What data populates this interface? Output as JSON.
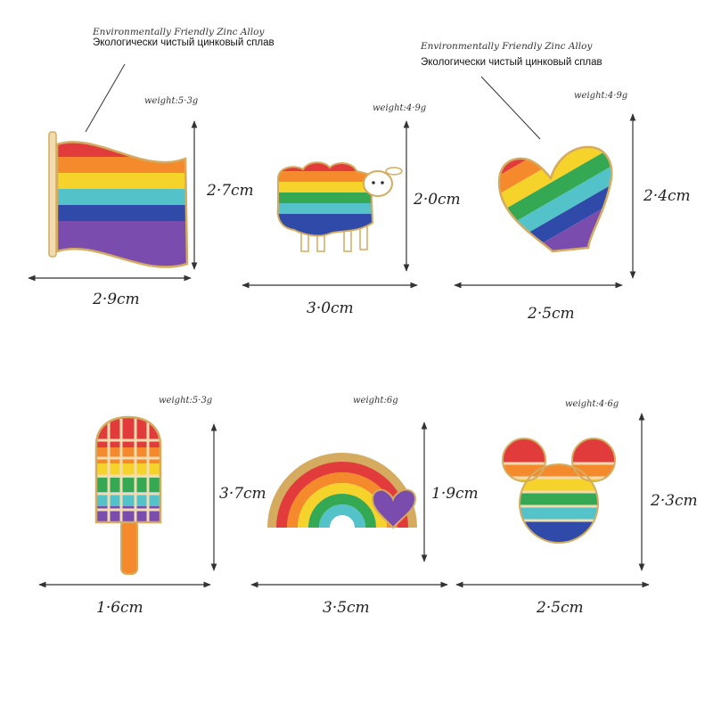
{
  "material_note": {
    "en": "Environmentally Friendly Zinc Alloy",
    "ru": "Экологически чистый цинковый сплав"
  },
  "colors": {
    "red": "#e23b3b",
    "orange": "#f58a2c",
    "yellow": "#f5d32a",
    "green": "#34a853",
    "cyan": "#53c3c9",
    "blue": "#2f4aa8",
    "purple": "#7a4cae",
    "gold": "#d4ab5f"
  },
  "pins": [
    {
      "name": "rainbow-flag",
      "weight": "weight:5·3g",
      "height": "2·7cm",
      "width": "2·9cm"
    },
    {
      "name": "rainbow-sheep",
      "weight": "weight:4·9g",
      "height": "2·0cm",
      "width": "3·0cm"
    },
    {
      "name": "rainbow-heart",
      "weight": "weight:4·9g",
      "height": "2·4cm",
      "width": "2·5cm"
    },
    {
      "name": "rainbow-popsicle",
      "weight": "weight:5·3g",
      "height": "3·7cm",
      "width": "1·6cm"
    },
    {
      "name": "rainbow-arch-heart",
      "weight": "weight:6g",
      "height": "1·9cm",
      "width": "3·5cm"
    },
    {
      "name": "rainbow-mouse-head",
      "weight": "weight:4·6g",
      "height": "2·3cm",
      "width": "2·5cm"
    }
  ]
}
